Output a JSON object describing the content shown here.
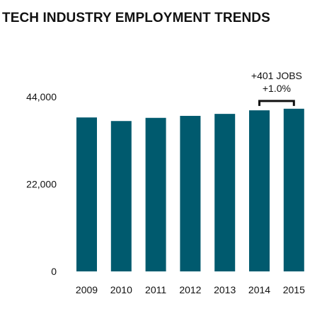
{
  "chart_data": {
    "type": "bar",
    "title": "TECH INDUSTRY EMPLOYMENT TRENDS",
    "categories": [
      "2009",
      "2010",
      "2011",
      "2012",
      "2013",
      "2014",
      "2015"
    ],
    "values": [
      38800,
      37900,
      38700,
      39200,
      39700,
      40600,
      41001
    ],
    "ylim": [
      0,
      44000
    ],
    "yticks": [
      0,
      22000,
      44000
    ],
    "ytick_labels": [
      "0",
      "22,000",
      "44,000"
    ],
    "grid": false,
    "bar_color": "#005a6e",
    "annotation": {
      "from": "2014",
      "to": "2015",
      "line1": "+401 JOBS",
      "line2": "+1.0%"
    }
  }
}
